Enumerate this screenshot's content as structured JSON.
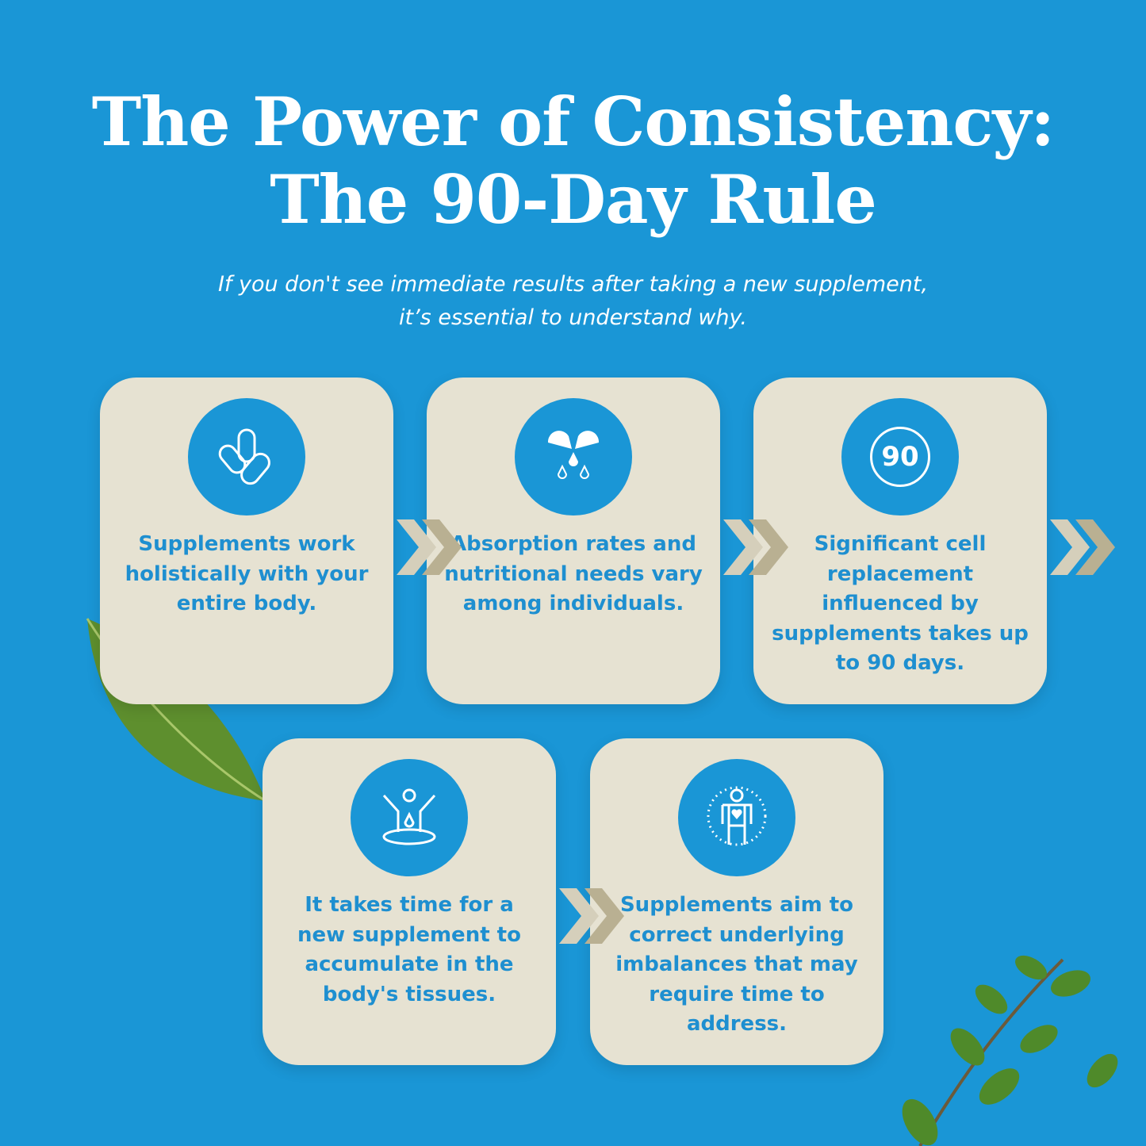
{
  "title": {
    "line1": "The Power of Consistency:",
    "line2": "The 90-Day Rule"
  },
  "subtitle": {
    "line1": "If you don't see immediate results after taking a new supplement,",
    "line2": "it’s essential to understand why."
  },
  "cards": [
    {
      "icon": "capsules-icon",
      "text": "Supplements work holistically with your entire body."
    },
    {
      "icon": "capsule-drops-icon",
      "text": "Absorption rates and nutritional needs vary among individuals."
    },
    {
      "icon": "ninety-days-icon",
      "icon_text": "90",
      "text": "Significant cell replacement influenced by supplements takes up to 90 days."
    },
    {
      "icon": "body-absorption-icon",
      "text": "It takes time for a new supplement to accumulate in the body's tissues."
    },
    {
      "icon": "body-heart-icon",
      "text": "Supplements aim to correct underlying imbalances that may require time to address."
    }
  ],
  "colors": {
    "background": "#1a96d6",
    "card": "#e6e2d2",
    "text": "#1e8fd0",
    "chevron_light": "#d5cfbb",
    "chevron_dark": "#b9b092"
  }
}
